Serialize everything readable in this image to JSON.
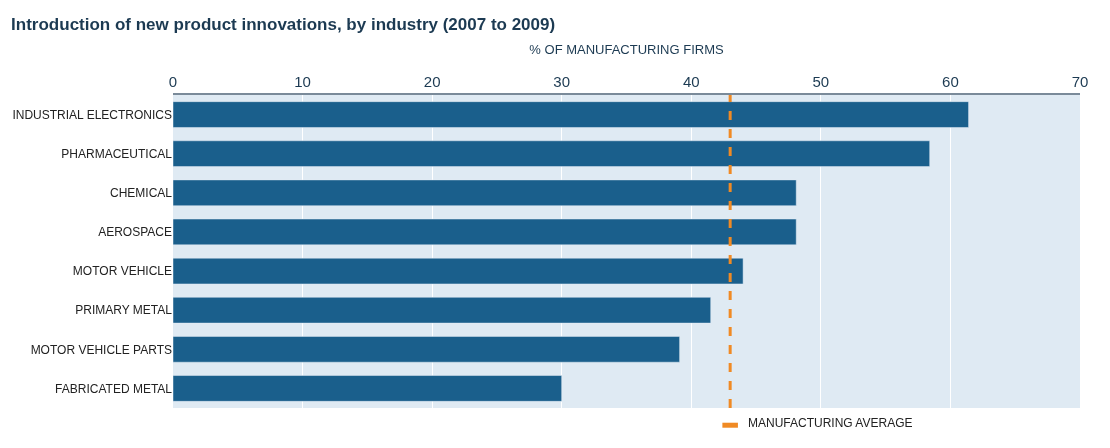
{
  "chart_data": {
    "type": "bar",
    "orientation": "horizontal",
    "title": "Introduction of new product innovations, by industry (2007 to 2009)",
    "xlabel": "% OF MANUFACTURING FIRMS",
    "categories": [
      "INDUSTRIAL ELECTRONICS",
      "PHARMACEUTICAL",
      "CHEMICAL",
      "AEROSPACE",
      "MOTOR VEHICLE",
      "PRIMARY METAL",
      "MOTOR VEHICLE PARTS",
      "FABRICATED METAL"
    ],
    "values": [
      61.4,
      58.4,
      48.1,
      48.1,
      44.0,
      41.5,
      39.1,
      30.0
    ],
    "color": "#1a5f8c",
    "xlim": [
      0,
      70
    ],
    "xticks": [
      0,
      10,
      20,
      30,
      40,
      50,
      60,
      70
    ],
    "grid": "x",
    "ref_lines": [
      {
        "axis": "x",
        "value": 43,
        "label": "MANUFACTURING AVERAGE",
        "color": "#f08a24",
        "line_style": "dashed"
      }
    ]
  }
}
